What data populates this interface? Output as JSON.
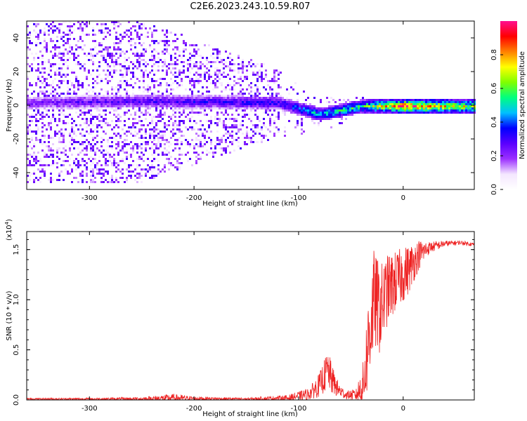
{
  "figure": {
    "title": "C2E6.2023.243.10.59.R07"
  },
  "chart_data": [
    {
      "type": "heatmap",
      "name": "spectrogram",
      "xlabel": "Height of straight line (km)",
      "ylabel": "Frequency (Hz)",
      "xlim": [
        -360,
        68
      ],
      "ylim": [
        -50,
        50
      ],
      "xticks": [
        -300,
        -200,
        -100,
        0
      ],
      "yticks": [
        -40,
        -20,
        0,
        20,
        40
      ],
      "colorbar": {
        "label": "Normalized spectral amplitude",
        "range": [
          0.0,
          1.0
        ],
        "ticks": [
          0.0,
          0.2,
          0.4,
          0.6,
          0.8
        ],
        "colormap": "rainbow",
        "stops": [
          "#ffffff",
          "#f4e6ff",
          "#9b30ff",
          "#5a00ff",
          "#0000ff",
          "#00bfff",
          "#00ff80",
          "#80ff00",
          "#ffff00",
          "#ff8000",
          "#ff0000",
          "#ff1090"
        ]
      },
      "description_points": [
        {
          "x": -350,
          "freq_center": 2,
          "spread": 48,
          "amp": 0.25
        },
        {
          "x": -250,
          "freq_center": 3,
          "spread": 48,
          "amp": 0.3
        },
        {
          "x": -120,
          "freq_center": 2,
          "spread": 20,
          "amp": 0.35
        },
        {
          "x": -80,
          "freq_center": -5,
          "spread": 10,
          "amp": 0.5
        },
        {
          "x": -40,
          "freq_center": 0,
          "spread": 6,
          "amp": 0.55
        },
        {
          "x": 0,
          "freq_center": 0,
          "spread": 3,
          "amp": 0.9
        },
        {
          "x": 60,
          "freq_center": 0,
          "spread": 3,
          "amp": 0.7
        }
      ]
    },
    {
      "type": "line",
      "name": "snr",
      "xlabel": "Height of straight line (km)",
      "ylabel": "SNR (10 * v/v)",
      "scale_label": "(x10",
      "scale_exp": "4",
      "scale_close": ")",
      "xlim": [
        -360,
        68
      ],
      "ylim": [
        0,
        1.68
      ],
      "xticks": [
        -300,
        -200,
        -100,
        0
      ],
      "yticks": [
        "0.0",
        "0.5",
        "1.0",
        "1.5"
      ],
      "ytick_values": [
        0,
        0.5,
        1.0,
        1.5
      ],
      "color": "#ee2222",
      "envelope": {
        "x": [
          -360,
          -300,
          -250,
          -220,
          -200,
          -150,
          -110,
          -90,
          -80,
          -72,
          -68,
          -62,
          -55,
          -45,
          -38,
          -32,
          -28,
          -22,
          -15,
          -5,
          5,
          15,
          25,
          40,
          55,
          68
        ],
        "y": [
          0.01,
          0.01,
          0.01,
          0.02,
          0.015,
          0.01,
          0.02,
          0.06,
          0.15,
          0.3,
          0.2,
          0.1,
          0.05,
          0.05,
          0.15,
          0.7,
          1.0,
          0.9,
          1.1,
          1.2,
          1.3,
          1.45,
          1.52,
          1.56,
          1.57,
          1.55
        ],
        "noise": [
          0.01,
          0.01,
          0.02,
          0.04,
          0.02,
          0.01,
          0.03,
          0.06,
          0.12,
          0.2,
          0.15,
          0.08,
          0.04,
          0.06,
          0.25,
          0.55,
          0.5,
          0.45,
          0.35,
          0.3,
          0.25,
          0.15,
          0.06,
          0.03,
          0.02,
          0.02
        ]
      }
    }
  ]
}
